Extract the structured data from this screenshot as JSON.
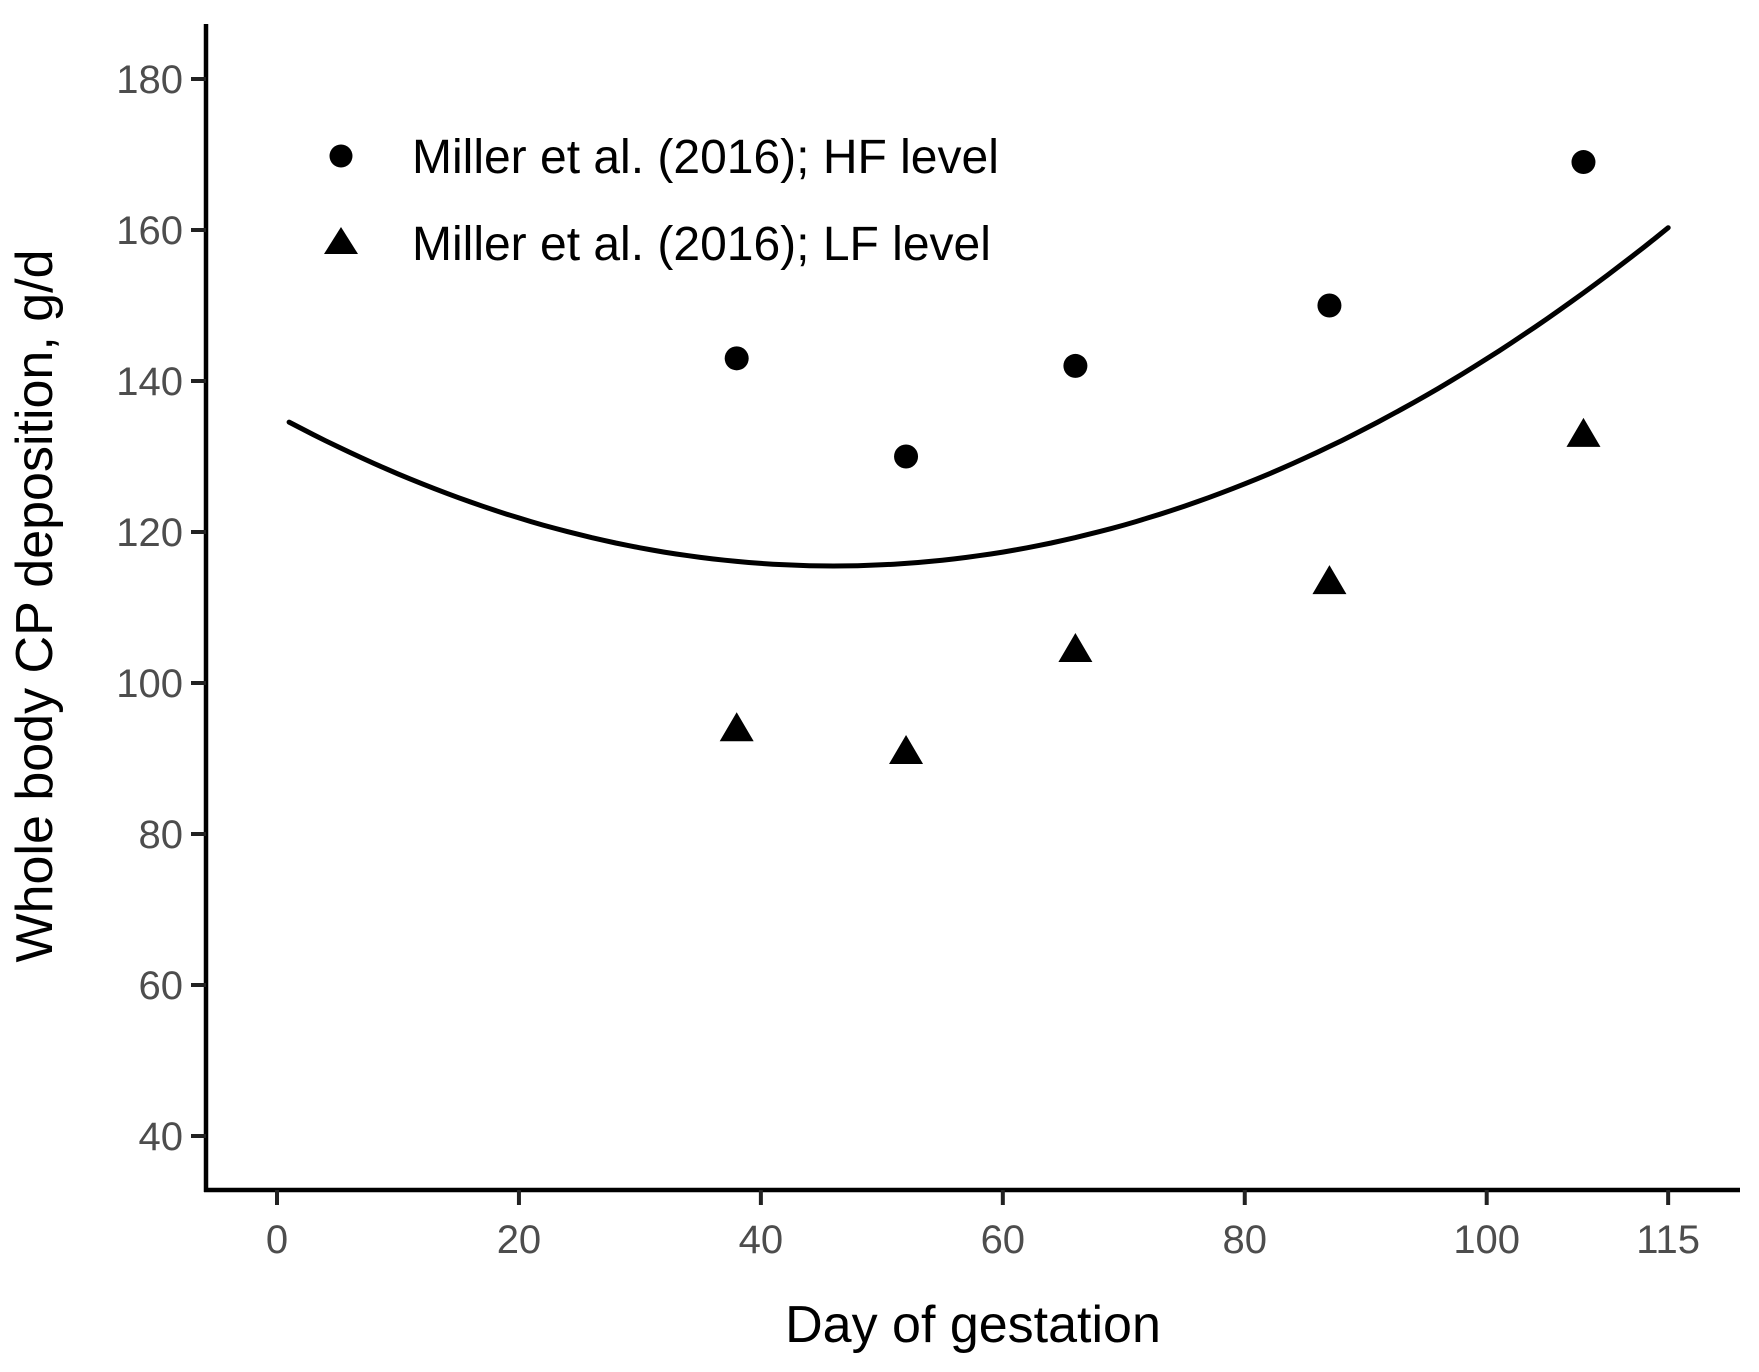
{
  "figure": {
    "background_color": "#ffffff",
    "axis_line_color": "#000000",
    "tick_mark_color": "#222222",
    "tick_label_color": "#4d4d4d",
    "point_color": "#000000",
    "curve_color": "#000000"
  },
  "chart_data": {
    "type": "scatter",
    "title": "",
    "xlabel": "Day of gestation",
    "ylabel": "Whole body CP deposition, g/d",
    "x_ticks": [
      0,
      20,
      40,
      60,
      80,
      100,
      115
    ],
    "y_ticks": [
      40,
      60,
      80,
      100,
      120,
      140,
      160,
      180
    ],
    "xlim": [
      -6,
      121
    ],
    "ylim": [
      33,
      187
    ],
    "grid": false,
    "legend_position": "inside-top-left",
    "series": [
      {
        "name": "Miller et al. (2016); HF level",
        "marker": "circle",
        "x": [
          38,
          52,
          66,
          87,
          108
        ],
        "y": [
          143,
          130,
          142,
          150,
          169
        ]
      },
      {
        "name": "Miller et al. (2016); LF level",
        "marker": "triangle",
        "x": [
          38,
          52,
          66,
          87,
          108
        ],
        "y": [
          94,
          91,
          104.5,
          113.5,
          133
        ]
      }
    ],
    "trend_curve": {
      "type": "quadratic",
      "equation": "y = 115.5 + 0.00941*(x - 46)^2",
      "a": 0.00941,
      "vertex_x": 46,
      "vertex_y": 115.5,
      "x_start": 1,
      "x_end": 115,
      "y_start": 134.5,
      "y_end": 160.3
    }
  }
}
